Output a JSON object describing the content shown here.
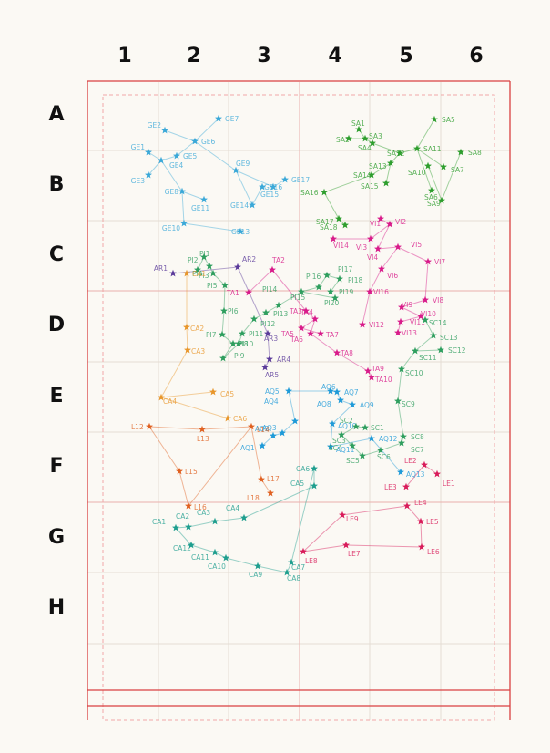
{
  "grid": {
    "columns": [
      "1",
      "2",
      "3",
      "4",
      "5",
      "6"
    ],
    "rows": [
      "A",
      "B",
      "C",
      "D",
      "E",
      "F",
      "G",
      "H"
    ]
  },
  "groups": [
    {
      "name": "GE",
      "color": "#3aa8d8",
      "edges": [
        [
          "GE2",
          "GE6"
        ],
        [
          "GE6",
          "GE7"
        ],
        [
          "GE6",
          "GE5"
        ],
        [
          "GE5",
          "GE4"
        ],
        [
          "GE4",
          "GE1"
        ],
        [
          "GE4",
          "GE3"
        ],
        [
          "GE4",
          "GE8"
        ],
        [
          "GE6",
          "GE9"
        ],
        [
          "GE9",
          "GE16"
        ],
        [
          "GE16",
          "GE17"
        ],
        [
          "GE8",
          "GE11"
        ],
        [
          "GE8",
          "GE10"
        ],
        [
          "GE10",
          "GE13"
        ],
        [
          "GE9",
          "GE14"
        ],
        [
          "GE14",
          "GE15"
        ]
      ]
    },
    {
      "name": "SA",
      "color": "#2e9e2e",
      "edges": [
        [
          "SA1",
          "SA3"
        ],
        [
          "SA2",
          "SA3"
        ],
        [
          "SA3",
          "SA4"
        ],
        [
          "SA4",
          "SA12"
        ],
        [
          "SA12",
          "SA11"
        ],
        [
          "SA11",
          "SA5"
        ],
        [
          "SA11",
          "SA6"
        ],
        [
          "SA11",
          "SA7"
        ],
        [
          "SA12",
          "SA13"
        ],
        [
          "SA13",
          "SA14"
        ],
        [
          "SA14",
          "SA16"
        ],
        [
          "SA16",
          "SA17"
        ],
        [
          "SA17",
          "SA18"
        ],
        [
          "SA10",
          "SA9"
        ],
        [
          "SA9",
          "SA8"
        ],
        [
          "SA13",
          "SA15"
        ]
      ]
    },
    {
      "name": "VI",
      "color": "#d81b8a",
      "edges": [
        [
          "VI1",
          "VI2"
        ],
        [
          "VI2",
          "VI3"
        ],
        [
          "VI3",
          "VI14"
        ],
        [
          "VI2",
          "VI4"
        ],
        [
          "VI4",
          "VI5"
        ],
        [
          "VI5",
          "VI6"
        ],
        [
          "VI5",
          "VI7"
        ],
        [
          "VI7",
          "VI8"
        ],
        [
          "VI8",
          "VI9"
        ],
        [
          "VI9",
          "VI10"
        ],
        [
          "VI10",
          "VI11"
        ],
        [
          "VI11",
          "VI13"
        ],
        [
          "VI6",
          "VI16"
        ],
        [
          "VI16",
          "VI12"
        ]
      ]
    },
    {
      "name": "PI",
      "color": "#2e9e5e",
      "edges": [
        [
          "PI1",
          "PI2"
        ],
        [
          "PI2",
          "PI3"
        ],
        [
          "PI3",
          "PI5"
        ],
        [
          "PI5",
          "PI6"
        ],
        [
          "PI6",
          "PI7"
        ],
        [
          "PI7",
          "PI8"
        ],
        [
          "PI8",
          "PI9"
        ],
        [
          "PI9",
          "PI10"
        ],
        [
          "PI10",
          "PI11"
        ],
        [
          "PI11",
          "PI12"
        ],
        [
          "PI12",
          "PI13"
        ],
        [
          "PI13",
          "PI14"
        ],
        [
          "PI14",
          "PI15"
        ],
        [
          "PI15",
          "PI16"
        ],
        [
          "PI16",
          "PI17"
        ],
        [
          "PI17",
          "PI18"
        ],
        [
          "PI18",
          "PI19"
        ],
        [
          "PI15",
          "PI20"
        ],
        [
          "PI1",
          "PI4"
        ]
      ]
    },
    {
      "name": "AR",
      "color": "#5a3a9a",
      "edges": [
        [
          "AR1",
          "AR2"
        ],
        [
          "AR2",
          "AR3"
        ],
        [
          "AR3",
          "AR4"
        ],
        [
          "AR4",
          "AR5"
        ]
      ]
    },
    {
      "name": "CA",
      "color": "#e8962a",
      "edges": [
        [
          "CA1",
          "CA2"
        ],
        [
          "CA2",
          "CA3"
        ],
        [
          "CA3",
          "CA4"
        ],
        [
          "CA4",
          "CA5"
        ],
        [
          "CA4",
          "CA6"
        ]
      ]
    },
    {
      "name": "TA",
      "color": "#d81b8a",
      "edges": [
        [
          "TA1",
          "TA2"
        ],
        [
          "TA2",
          "TA3"
        ],
        [
          "TA3",
          "TA4"
        ],
        [
          "TA4",
          "TA5"
        ],
        [
          "TA5",
          "TA7"
        ],
        [
          "TA4",
          "TA6"
        ],
        [
          "TA6",
          "TA8"
        ],
        [
          "TA8",
          "TA9"
        ],
        [
          "TA9",
          "TA10"
        ]
      ]
    },
    {
      "name": "AQ",
      "color": "#1e9ad8",
      "edges": [
        [
          "AQ1",
          "AQ2"
        ],
        [
          "AQ2",
          "AQ3"
        ],
        [
          "AQ3",
          "AQ4"
        ],
        [
          "AQ4",
          "AQ5"
        ],
        [
          "AQ5",
          "AQ6"
        ],
        [
          "AQ6",
          "AQ7"
        ],
        [
          "AQ7",
          "AQ8"
        ],
        [
          "AQ8",
          "AQ9"
        ],
        [
          "AQ9",
          "AQ10"
        ],
        [
          "AQ10",
          "AQ11"
        ],
        [
          "AQ11",
          "AQ12"
        ],
        [
          "AQ12",
          "AQ13"
        ]
      ]
    },
    {
      "name": "SC",
      "color": "#2e9e5e",
      "edges": [
        [
          "SC1",
          "SC2"
        ],
        [
          "SC2",
          "SC3"
        ],
        [
          "SC3",
          "SC4"
        ],
        [
          "SC4",
          "SC5"
        ],
        [
          "SC5",
          "SC6"
        ],
        [
          "SC6",
          "SC7"
        ],
        [
          "SC7",
          "SC8"
        ],
        [
          "SC8",
          "SC9"
        ],
        [
          "SC9",
          "SC10"
        ],
        [
          "SC10",
          "SC11"
        ],
        [
          "SC11",
          "SC12"
        ],
        [
          "SC11",
          "SC13"
        ],
        [
          "SC13",
          "SC14"
        ]
      ]
    },
    {
      "name": "L",
      "color": "#e06020",
      "edges": [
        [
          "L12",
          "L13"
        ],
        [
          "L13",
          "L14"
        ],
        [
          "L14",
          "L16"
        ],
        [
          "L12",
          "L15"
        ],
        [
          "L15",
          "L16"
        ],
        [
          "L14",
          "L17"
        ],
        [
          "L17",
          "L18"
        ]
      ]
    },
    {
      "name": "LE",
      "color": "#d81b5a",
      "edges": [
        [
          "LE1",
          "LE2"
        ],
        [
          "LE2",
          "LE3"
        ],
        [
          "LE4",
          "LE5"
        ],
        [
          "LE5",
          "LE6"
        ],
        [
          "LE6",
          "LE7"
        ],
        [
          "LE7",
          "LE8"
        ],
        [
          "LE8",
          "LE9"
        ],
        [
          "LE9",
          "LE4"
        ]
      ]
    },
    {
      "name": "CA2",
      "color": "#1e9e8e",
      "edges": [
        [
          "CA1b",
          "CA2b"
        ],
        [
          "CA2b",
          "CA3b"
        ],
        [
          "CA3b",
          "CA4b"
        ],
        [
          "CA4b",
          "CA5b"
        ],
        [
          "CA5b",
          "CA6b"
        ],
        [
          "CA6b",
          "CA7b"
        ],
        [
          "CA7b",
          "CA8b"
        ],
        [
          "CA8b",
          "CA9b"
        ],
        [
          "CA9b",
          "CA10b"
        ],
        [
          "CA10b",
          "CA11b"
        ],
        [
          "CA11b",
          "CA12b"
        ],
        [
          "CA12b",
          "CA1b"
        ]
      ]
    }
  ],
  "stars": [
    {
      "id": "GE1",
      "label": "GE1",
      "group": "GE"
    },
    {
      "id": "GE2",
      "label": "GE2",
      "group": "GE"
    },
    {
      "id": "GE3",
      "label": "GE3",
      "group": "GE"
    },
    {
      "id": "GE4",
      "label": "GE4",
      "group": "GE"
    },
    {
      "id": "GE5",
      "label": "GE5",
      "group": "GE"
    },
    {
      "id": "GE6",
      "label": "GE6",
      "group": "GE"
    },
    {
      "id": "GE7",
      "label": "GE7",
      "group": "GE"
    },
    {
      "id": "GE8",
      "label": "GE8",
      "group": "GE"
    },
    {
      "id": "GE9",
      "label": "GE9",
      "group": "GE"
    },
    {
      "id": "GE10",
      "label": "GE10",
      "group": "GE"
    },
    {
      "id": "GE11",
      "label": "GE11",
      "group": "GE"
    },
    {
      "id": "GE13",
      "label": "GE13",
      "group": "GE"
    },
    {
      "id": "GE14",
      "label": "GE14",
      "group": "GE"
    },
    {
      "id": "GE15",
      "label": "GE15",
      "group": "GE"
    },
    {
      "id": "GE16",
      "label": "GE16",
      "group": "GE"
    },
    {
      "id": "GE17",
      "label": "GE17",
      "group": "GE"
    },
    {
      "id": "SA1",
      "label": "SA1",
      "group": "SA"
    },
    {
      "id": "SA2",
      "label": "SA2",
      "group": "SA"
    },
    {
      "id": "SA3",
      "label": "SA3",
      "group": "SA"
    },
    {
      "id": "SA4",
      "label": "SA4",
      "group": "SA"
    },
    {
      "id": "SA5",
      "label": "SA5",
      "group": "SA"
    },
    {
      "id": "SA6",
      "label": "SA6",
      "group": "SA"
    },
    {
      "id": "SA7",
      "label": "SA7",
      "group": "SA"
    },
    {
      "id": "SA8",
      "label": "SA8",
      "group": "SA"
    },
    {
      "id": "SA9",
      "label": "SA9",
      "group": "SA"
    },
    {
      "id": "SA10",
      "label": "SA10",
      "group": "SA"
    },
    {
      "id": "SA11",
      "label": "SA11",
      "group": "SA"
    },
    {
      "id": "SA12",
      "label": "SA12",
      "group": "SA"
    },
    {
      "id": "SA13",
      "label": "SA13",
      "group": "SA"
    },
    {
      "id": "SA14",
      "label": "SA14",
      "group": "SA"
    },
    {
      "id": "SA15",
      "label": "SA15",
      "group": "SA"
    },
    {
      "id": "SA16",
      "label": "SA16",
      "group": "SA"
    },
    {
      "id": "SA17",
      "label": "SA17",
      "group": "SA"
    },
    {
      "id": "SA18",
      "label": "SA18",
      "group": "SA"
    },
    {
      "id": "VI1",
      "label": "VI1",
      "group": "VI"
    },
    {
      "id": "VI2",
      "label": "VI2",
      "group": "VI"
    },
    {
      "id": "VI3",
      "label": "VI3",
      "group": "VI"
    },
    {
      "id": "VI4",
      "label": "VI4",
      "group": "VI"
    },
    {
      "id": "VI5",
      "label": "VI5",
      "group": "VI"
    },
    {
      "id": "VI6",
      "label": "VI6",
      "group": "VI"
    },
    {
      "id": "VI7",
      "label": "VI7",
      "group": "VI"
    },
    {
      "id": "VI8",
      "label": "VI8",
      "group": "VI"
    },
    {
      "id": "VI9",
      "label": "VI9",
      "group": "VI"
    },
    {
      "id": "VI10",
      "label": "VI10",
      "group": "VI"
    },
    {
      "id": "VI11",
      "label": "VI11",
      "group": "VI"
    },
    {
      "id": "VI12",
      "label": "VI12",
      "group": "VI"
    },
    {
      "id": "VI13",
      "label": "VI13",
      "group": "VI"
    },
    {
      "id": "VI14",
      "label": "VI14",
      "group": "VI"
    },
    {
      "id": "VI16",
      "label": "VI16",
      "group": "VI"
    },
    {
      "id": "PI1",
      "label": "PI1",
      "group": "PI"
    },
    {
      "id": "PI2",
      "label": "PI2",
      "group": "PI"
    },
    {
      "id": "PI3",
      "label": "PI3",
      "group": "PI"
    },
    {
      "id": "PI4",
      "label": "PI4",
      "group": "PI"
    },
    {
      "id": "PI5",
      "label": "PI5",
      "group": "PI"
    },
    {
      "id": "PI6",
      "label": "PI6",
      "group": "PI"
    },
    {
      "id": "PI7",
      "label": "PI7",
      "group": "PI"
    },
    {
      "id": "PI8",
      "label": "PI8",
      "group": "PI"
    },
    {
      "id": "PI9",
      "label": "PI9",
      "group": "PI"
    },
    {
      "id": "PI10",
      "label": "PI10",
      "group": "PI"
    },
    {
      "id": "PI11",
      "label": "PI11",
      "group": "PI"
    },
    {
      "id": "PI12",
      "label": "PI12",
      "group": "PI"
    },
    {
      "id": "PI13",
      "label": "PI13",
      "group": "PI"
    },
    {
      "id": "PI14",
      "label": "PI14",
      "group": "PI"
    },
    {
      "id": "PI15",
      "label": "PI15",
      "group": "PI"
    },
    {
      "id": "PI16",
      "label": "PI16",
      "group": "PI"
    },
    {
      "id": "PI17",
      "label": "PI17",
      "group": "PI"
    },
    {
      "id": "PI18",
      "label": "PI18",
      "group": "PI"
    },
    {
      "id": "PI19",
      "label": "PI19",
      "group": "PI"
    },
    {
      "id": "PI20",
      "label": "PI20",
      "group": "PI"
    },
    {
      "id": "AR1",
      "label": "AR1",
      "group": "AR"
    },
    {
      "id": "AR2",
      "label": "AR2",
      "group": "AR"
    },
    {
      "id": "AR3",
      "label": "AR3",
      "group": "AR"
    },
    {
      "id": "AR4",
      "label": "AR4",
      "group": "AR"
    },
    {
      "id": "AR5",
      "label": "AR5",
      "group": "AR"
    },
    {
      "id": "CA1",
      "label": "CA1",
      "group": "CA"
    },
    {
      "id": "CA2",
      "label": "CA2",
      "group": "CA"
    },
    {
      "id": "CA3",
      "label": "CA3",
      "group": "CA"
    },
    {
      "id": "CA4",
      "label": "CA4",
      "group": "CA"
    },
    {
      "id": "CA5",
      "label": "CA5",
      "group": "CA"
    },
    {
      "id": "CA6",
      "label": "CA6",
      "group": "CA"
    },
    {
      "id": "TA1",
      "label": "TA1",
      "group": "TA"
    },
    {
      "id": "TA2",
      "label": "TA2",
      "group": "TA"
    },
    {
      "id": "TA3",
      "label": "TA3",
      "group": "TA"
    },
    {
      "id": "TA4",
      "label": "TA4",
      "group": "TA"
    },
    {
      "id": "TA5",
      "label": "TA5",
      "group": "TA"
    },
    {
      "id": "TA6",
      "label": "TA6",
      "group": "TA"
    },
    {
      "id": "TA7",
      "label": "TA7",
      "group": "TA"
    },
    {
      "id": "TA8",
      "label": "TA8",
      "group": "TA"
    },
    {
      "id": "TA9",
      "label": "TA9",
      "group": "TA"
    },
    {
      "id": "TA10",
      "label": "TA10",
      "group": "TA"
    },
    {
      "id": "AQ1",
      "label": "AQ1",
      "group": "AQ"
    },
    {
      "id": "AQ2",
      "label": "AQ2",
      "group": "AQ"
    },
    {
      "id": "AQ3",
      "label": "AQ3",
      "group": "AQ"
    },
    {
      "id": "AQ4",
      "label": "AQ4",
      "group": "AQ"
    },
    {
      "id": "AQ5",
      "label": "AQ5",
      "group": "AQ"
    },
    {
      "id": "AQ6",
      "label": "AQ6",
      "group": "AQ"
    },
    {
      "id": "AQ7",
      "label": "AQ7",
      "group": "AQ"
    },
    {
      "id": "AQ8",
      "label": "AQ8",
      "group": "AQ"
    },
    {
      "id": "AQ9",
      "label": "AQ9",
      "group": "AQ"
    },
    {
      "id": "AQ10",
      "label": "AQ10",
      "group": "AQ"
    },
    {
      "id": "AQ11",
      "label": "AQ11",
      "group": "AQ"
    },
    {
      "id": "AQ12",
      "label": "AQ12",
      "group": "AQ"
    },
    {
      "id": "AQ13",
      "label": "AQ13",
      "group": "AQ"
    },
    {
      "id": "SC1",
      "label": "SC1",
      "group": "SC"
    },
    {
      "id": "SC2",
      "label": "SC2",
      "group": "SC"
    },
    {
      "id": "SC3",
      "label": "SC3",
      "group": "SC"
    },
    {
      "id": "SC4",
      "label": "SC4",
      "group": "SC"
    },
    {
      "id": "SC5",
      "label": "SC5",
      "group": "SC"
    },
    {
      "id": "SC6",
      "label": "SC6",
      "group": "SC"
    },
    {
      "id": "SC7",
      "label": "SC7",
      "group": "SC"
    },
    {
      "id": "SC8",
      "label": "SC8",
      "group": "SC"
    },
    {
      "id": "SC9",
      "label": "SC9",
      "group": "SC"
    },
    {
      "id": "SC10",
      "label": "SC10",
      "group": "SC"
    },
    {
      "id": "SC11",
      "label": "SC11",
      "group": "SC"
    },
    {
      "id": "SC12",
      "label": "SC12",
      "group": "SC"
    },
    {
      "id": "SC13",
      "label": "SC13",
      "group": "SC"
    },
    {
      "id": "SC14",
      "label": "SC14",
      "group": "SC"
    },
    {
      "id": "L12",
      "label": "L12",
      "group": "L"
    },
    {
      "id": "L13",
      "label": "L13",
      "group": "L"
    },
    {
      "id": "L14",
      "label": "L14",
      "group": "L"
    },
    {
      "id": "L15",
      "label": "L15",
      "group": "L"
    },
    {
      "id": "L16",
      "label": "L16",
      "group": "L"
    },
    {
      "id": "L17",
      "label": "L17",
      "group": "L"
    },
    {
      "id": "L18",
      "label": "L18",
      "group": "L"
    },
    {
      "id": "LE1",
      "label": "LE1",
      "group": "LE"
    },
    {
      "id": "LE2",
      "label": "LE2",
      "group": "LE"
    },
    {
      "id": "LE3",
      "label": "LE3",
      "group": "LE"
    },
    {
      "id": "LE4",
      "label": "LE4",
      "group": "LE"
    },
    {
      "id": "LE5",
      "label": "LE5",
      "group": "LE"
    },
    {
      "id": "LE6",
      "label": "LE6",
      "group": "LE"
    },
    {
      "id": "LE7",
      "label": "LE7",
      "group": "LE"
    },
    {
      "id": "LE8",
      "label": "LE8",
      "group": "LE"
    },
    {
      "id": "LE9",
      "label": "LE9",
      "group": "LE"
    },
    {
      "id": "CA1b",
      "label": "CA1",
      "group": "CA2"
    },
    {
      "id": "CA2b",
      "label": "CA2",
      "group": "CA2"
    },
    {
      "id": "CA3b",
      "label": "CA3",
      "group": "CA2"
    },
    {
      "id": "CA4b",
      "label": "CA4",
      "group": "CA2"
    },
    {
      "id": "CA5b",
      "label": "CA5",
      "group": "CA2"
    },
    {
      "id": "CA6b",
      "label": "CA6",
      "group": "CA2"
    },
    {
      "id": "CA7b",
      "label": "CA7",
      "group": "CA2"
    },
    {
      "id": "CA8b",
      "label": "CA8",
      "group": "CA2"
    },
    {
      "id": "CA9b",
      "label": "CA9",
      "group": "CA2"
    },
    {
      "id": "CA10b",
      "label": "CA10",
      "group": "CA2"
    },
    {
      "id": "CA11b",
      "label": "CA11",
      "group": "CA2"
    },
    {
      "id": "CA12b",
      "label": "CA12",
      "group": "CA2"
    }
  ]
}
